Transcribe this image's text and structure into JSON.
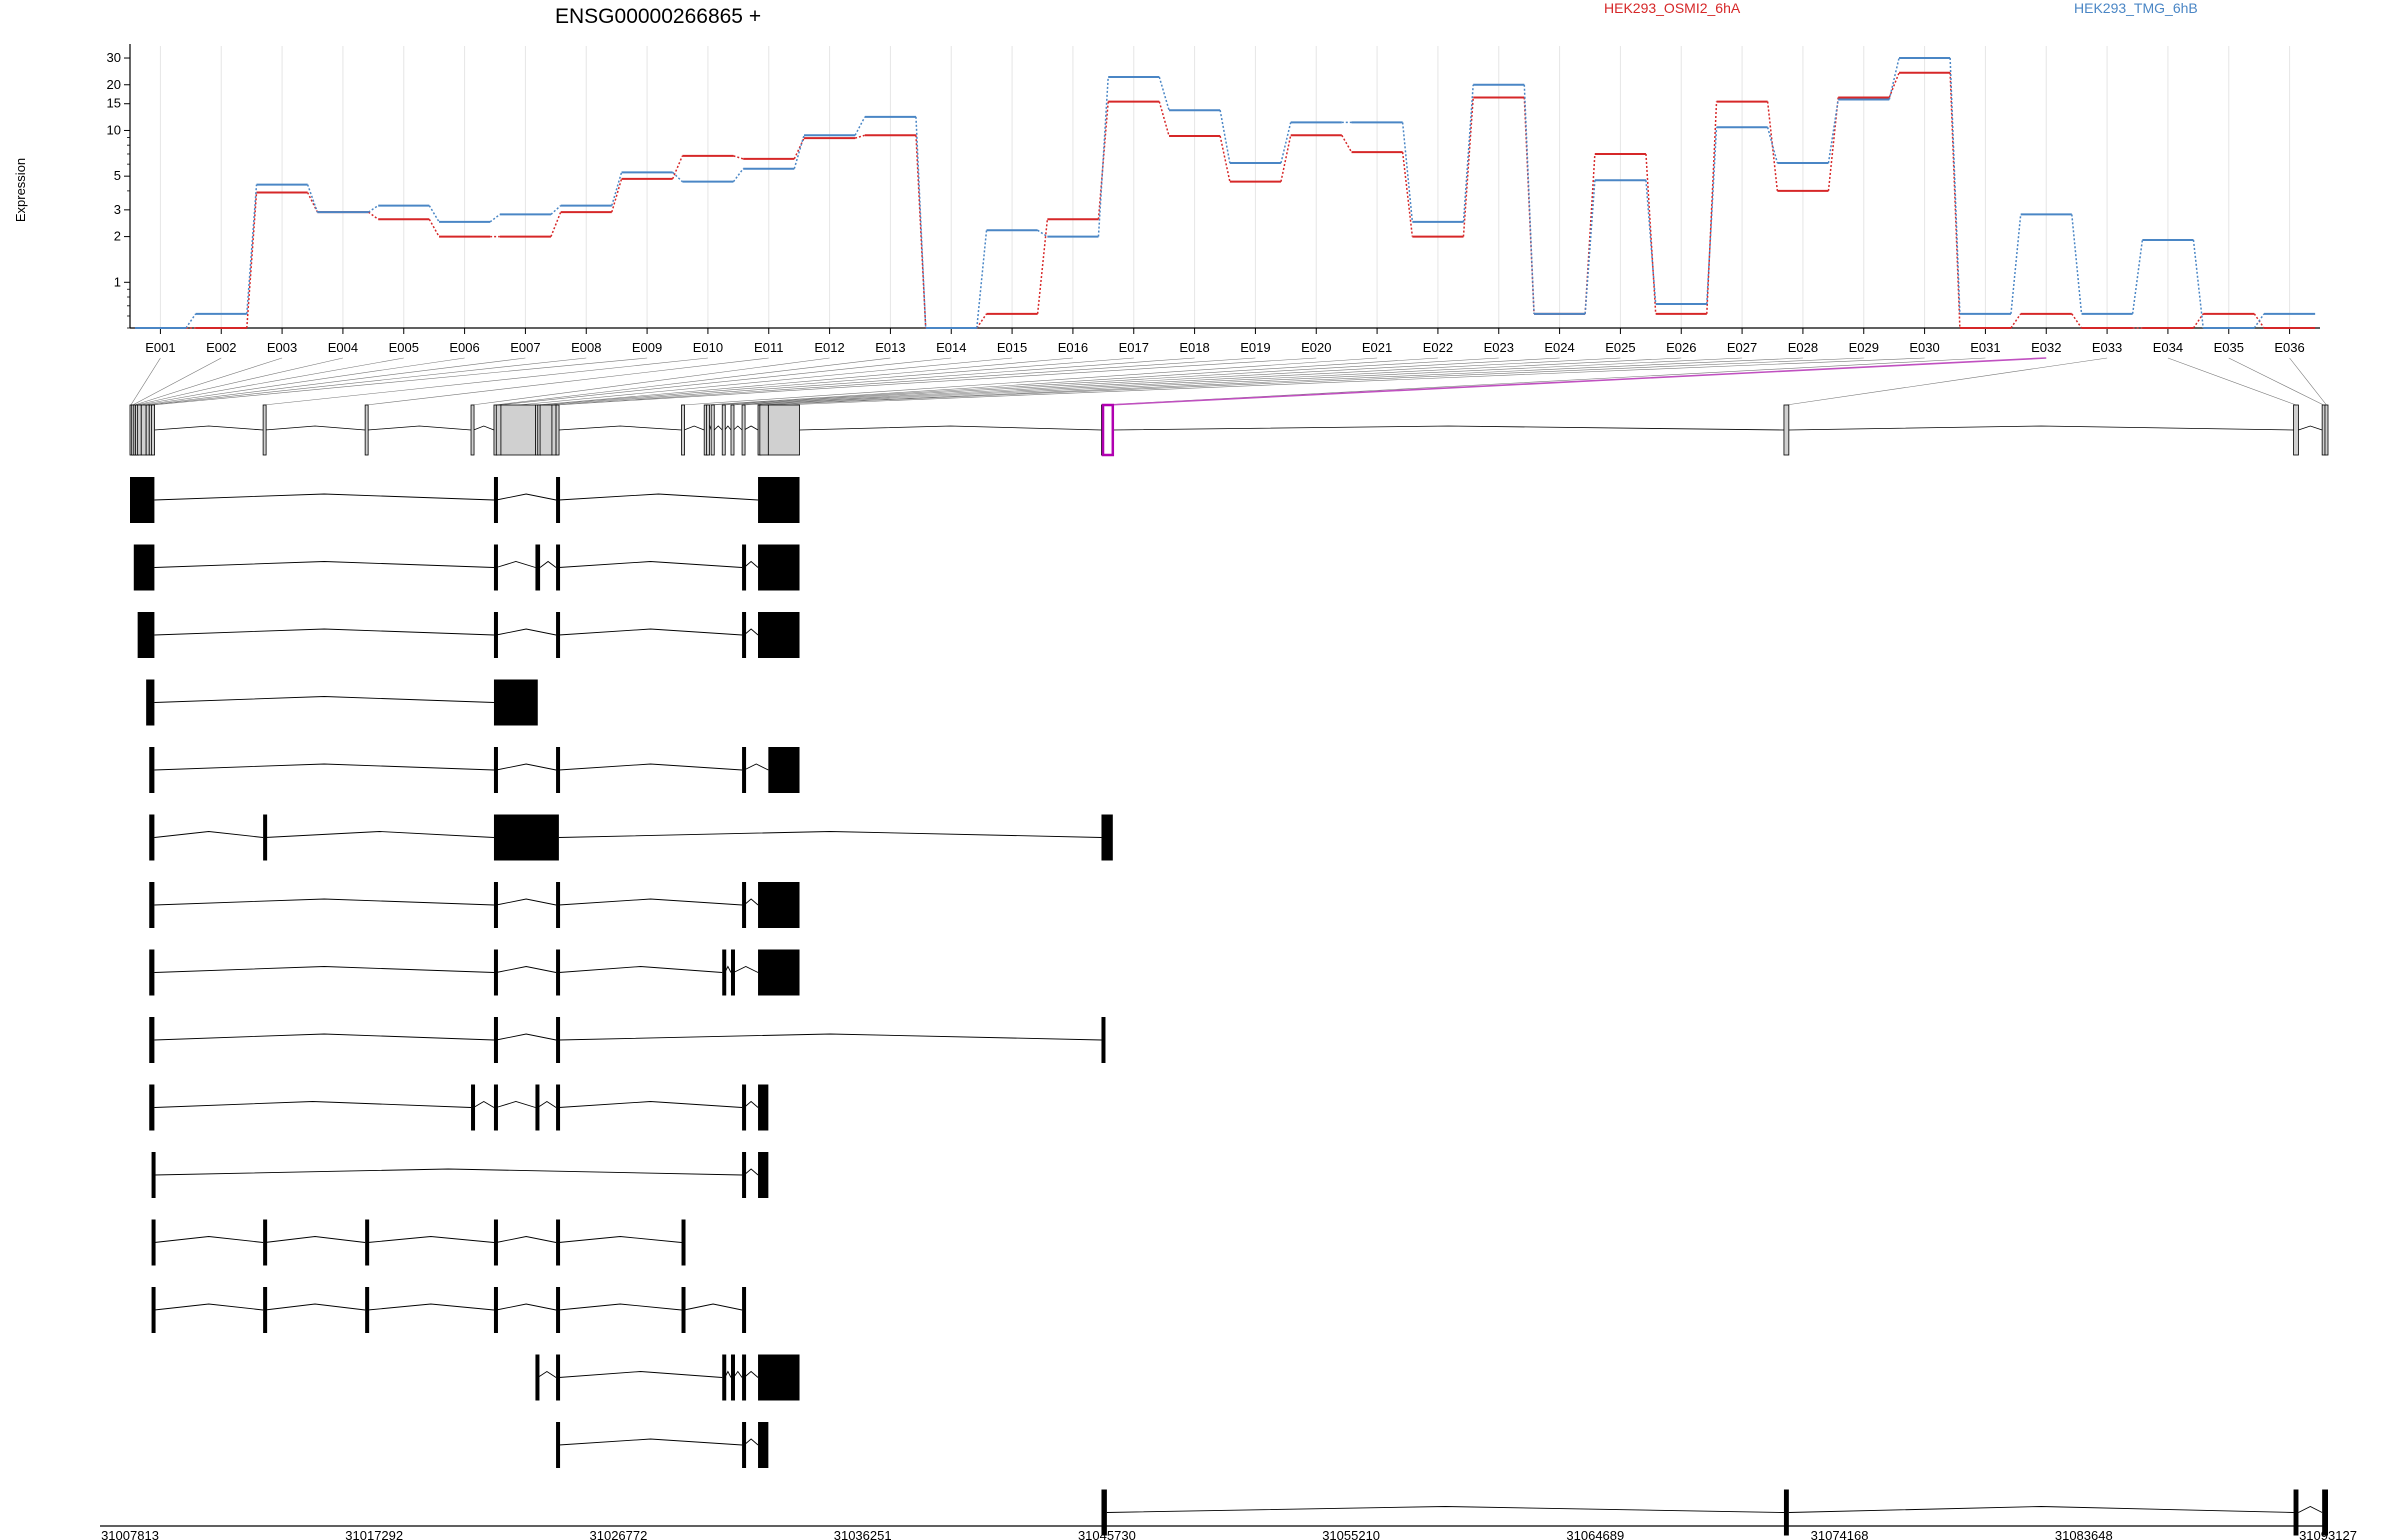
{
  "chart_data": {
    "type": "line",
    "title": "ENSG00000266865 +",
    "ylabel": "Expression",
    "yscale": "log",
    "ylim": [
      0.5,
      36
    ],
    "yticks": [
      {
        "v": 1,
        "label": "1"
      },
      {
        "v": 2,
        "label": "2"
      },
      {
        "v": 3,
        "label": "3"
      },
      {
        "v": 5,
        "label": "5"
      },
      {
        "v": 10,
        "label": "10"
      },
      {
        "v": 15,
        "label": "15"
      },
      {
        "v": 20,
        "label": "20"
      },
      {
        "v": 30,
        "label": "30"
      }
    ],
    "grid": true,
    "legend_position": "top",
    "categories": [
      "E001",
      "E002",
      "E003",
      "E004",
      "E005",
      "E006",
      "E007",
      "E008",
      "E009",
      "E010",
      "E011",
      "E012",
      "E013",
      "E014",
      "E015",
      "E016",
      "E017",
      "E018",
      "E019",
      "E020",
      "E021",
      "E022",
      "E023",
      "E024",
      "E025",
      "E026",
      "E027",
      "E028",
      "E029",
      "E030",
      "E031",
      "E032",
      "E033",
      "E034",
      "E035",
      "E036"
    ],
    "series": [
      {
        "name": "HEK293_OSMI2_6hA",
        "color": "#d62728",
        "values": [
          0.5,
          0.5,
          3.9,
          2.9,
          2.6,
          2.0,
          2.0,
          2.9,
          4.8,
          6.8,
          6.5,
          8.9,
          9.3,
          0.5,
          0.62,
          2.6,
          15.5,
          9.2,
          4.6,
          9.3,
          7.2,
          2.0,
          16.5,
          0.62,
          7.0,
          0.62,
          15.5,
          4.0,
          16.5,
          24.0,
          0.5,
          0.62,
          0.5,
          0.5,
          0.62,
          0.5
        ]
      },
      {
        "name": "HEK293_TMG_6hB",
        "color": "#4a86c5",
        "values": [
          0.5,
          0.62,
          4.4,
          2.9,
          3.2,
          2.5,
          2.8,
          3.2,
          5.3,
          4.6,
          5.6,
          9.3,
          12.3,
          0.5,
          2.2,
          2.0,
          22.5,
          13.6,
          6.1,
          11.3,
          11.3,
          2.5,
          20.0,
          0.62,
          4.7,
          0.72,
          10.5,
          6.1,
          16.0,
          30.0,
          0.62,
          2.8,
          0.62,
          1.9,
          0.5,
          0.62
        ]
      }
    ],
    "coordinates": {
      "range": [
        31007813,
        31093127
      ],
      "tick_labels": [
        "31007813",
        "31017292",
        "31026772",
        "31036251",
        "31045730",
        "31055210",
        "31064689",
        "31074168",
        "31083648",
        "31093127"
      ]
    },
    "exons": [
      {
        "id": "E001",
        "start": 31007813,
        "end": 31007880
      },
      {
        "id": "E002",
        "start": 31007880,
        "end": 31007960
      },
      {
        "id": "E003",
        "start": 31007960,
        "end": 31008030
      },
      {
        "id": "E004",
        "start": 31008030,
        "end": 31008110
      },
      {
        "id": "E005",
        "start": 31008110,
        "end": 31008250
      },
      {
        "id": "E006",
        "start": 31008250,
        "end": 31008440
      },
      {
        "id": "E007",
        "start": 31008440,
        "end": 31008560
      },
      {
        "id": "E008",
        "start": 31008560,
        "end": 31008650
      },
      {
        "id": "E009",
        "start": 31008650,
        "end": 31008760
      },
      {
        "id": "E010",
        "start": 31012980,
        "end": 31013050
      },
      {
        "id": "E011",
        "start": 31016940,
        "end": 31017040
      },
      {
        "id": "E012",
        "start": 31021050,
        "end": 31021150
      },
      {
        "id": "E013",
        "start": 31021940,
        "end": 31022030
      },
      {
        "id": "E014",
        "start": 31022030,
        "end": 31022210
      },
      {
        "id": "E015",
        "start": 31022210,
        "end": 31023550
      },
      {
        "id": "E016",
        "start": 31023550,
        "end": 31023640
      },
      {
        "id": "E017",
        "start": 31023640,
        "end": 31023730
      },
      {
        "id": "E018",
        "start": 31023730,
        "end": 31024190
      },
      {
        "id": "E019",
        "start": 31024190,
        "end": 31024350
      },
      {
        "id": "E020",
        "start": 31024350,
        "end": 31024460
      },
      {
        "id": "E021",
        "start": 31029220,
        "end": 31029320
      },
      {
        "id": "E022",
        "start": 31030100,
        "end": 31030190
      },
      {
        "id": "E023",
        "start": 31030190,
        "end": 31030270
      },
      {
        "id": "E024",
        "start": 31030370,
        "end": 31030490
      },
      {
        "id": "E025",
        "start": 31030800,
        "end": 31030900
      },
      {
        "id": "E026",
        "start": 31031140,
        "end": 31031240
      },
      {
        "id": "E027",
        "start": 31031570,
        "end": 31031650
      },
      {
        "id": "E028",
        "start": 31032190,
        "end": 31032260
      },
      {
        "id": "E029",
        "start": 31032260,
        "end": 31032590
      },
      {
        "id": "E030",
        "start": 31032590,
        "end": 31033800
      },
      {
        "id": "E031",
        "start": 31045520,
        "end": 31045580
      },
      {
        "id": "E032",
        "start": 31045580,
        "end": 31045960
      },
      {
        "id": "E033",
        "start": 31072010,
        "end": 31072200
      },
      {
        "id": "E034",
        "start": 31091790,
        "end": 31091980
      },
      {
        "id": "E035",
        "start": 31092900,
        "end": 31093010
      },
      {
        "id": "E036",
        "start": 31093010,
        "end": 31093127
      }
    ],
    "highlighted_exon": "E032",
    "transcripts": [
      [
        [
          31007813,
          31008760
        ],
        [
          31021940,
          31022030
        ],
        [
          31024350,
          31024460
        ],
        [
          31032190,
          31033800
        ]
      ],
      [
        [
          31007960,
          31008760
        ],
        [
          31021940,
          31022030
        ],
        [
          31023550,
          31023730
        ],
        [
          31024350,
          31024460
        ],
        [
          31031570,
          31031650
        ],
        [
          31032190,
          31033800
        ]
      ],
      [
        [
          31008110,
          31008760
        ],
        [
          31021940,
          31022030
        ],
        [
          31024350,
          31024460
        ],
        [
          31031570,
          31031650
        ],
        [
          31032190,
          31032260
        ],
        [
          31032190,
          31033800
        ]
      ],
      [
        [
          31008440,
          31008760
        ],
        [
          31021940,
          31023640
        ]
      ],
      [
        [
          31008560,
          31008760
        ],
        [
          31021940,
          31022030
        ],
        [
          31024350,
          31024460
        ],
        [
          31031570,
          31031650
        ],
        [
          31032590,
          31033800
        ]
      ],
      [
        [
          31008560,
          31008760
        ],
        [
          31012980,
          31013050
        ],
        [
          31021940,
          31024460
        ],
        [
          31045520,
          31045960
        ]
      ],
      [
        [
          31008560,
          31008760
        ],
        [
          31021940,
          31022030
        ],
        [
          31024350,
          31024460
        ],
        [
          31031570,
          31031650
        ],
        [
          31032190,
          31033800
        ]
      ],
      [
        [
          31008560,
          31008760
        ],
        [
          31021940,
          31022030
        ],
        [
          31024350,
          31024460
        ],
        [
          31030800,
          31030900
        ],
        [
          31031140,
          31031240
        ],
        [
          31032190,
          31033800
        ]
      ],
      [
        [
          31008560,
          31008760
        ],
        [
          31021940,
          31022030
        ],
        [
          31024350,
          31024460
        ],
        [
          31045520,
          31045580
        ]
      ],
      [
        [
          31008560,
          31008760
        ],
        [
          31021050,
          31021150
        ],
        [
          31021940,
          31022030
        ],
        [
          31023550,
          31023640
        ],
        [
          31024350,
          31024460
        ],
        [
          31031570,
          31031650
        ],
        [
          31032190,
          31032590
        ]
      ],
      [
        [
          31008650,
          31008760
        ],
        [
          31031570,
          31031650
        ],
        [
          31032260,
          31032350
        ],
        [
          31032190,
          31032590
        ]
      ],
      [
        [
          31008650,
          31008760
        ],
        [
          31012980,
          31013050
        ],
        [
          31016940,
          31017040
        ],
        [
          31021940,
          31022030
        ],
        [
          31024350,
          31024460
        ],
        [
          31029220,
          31029320
        ]
      ],
      [
        [
          31008650,
          31008760
        ],
        [
          31012980,
          31013050
        ],
        [
          31016940,
          31017040
        ],
        [
          31021940,
          31022030
        ],
        [
          31024350,
          31024460
        ],
        [
          31029220,
          31029320
        ],
        [
          31031570,
          31031650
        ]
      ],
      [
        [
          31023550,
          31023640
        ],
        [
          31024350,
          31024460
        ],
        [
          31030800,
          31030900
        ],
        [
          31031140,
          31031240
        ],
        [
          31031570,
          31031650
        ],
        [
          31032190,
          31033800
        ]
      ],
      [
        [
          31024350,
          31024460
        ],
        [
          31031570,
          31031650
        ],
        [
          31032260,
          31032350
        ],
        [
          31032190,
          31032590
        ]
      ],
      [
        [
          31045520,
          31045730
        ],
        [
          31072010,
          31072200
        ],
        [
          31091790,
          31091980
        ],
        [
          31092900,
          31093127
        ]
      ]
    ]
  }
}
